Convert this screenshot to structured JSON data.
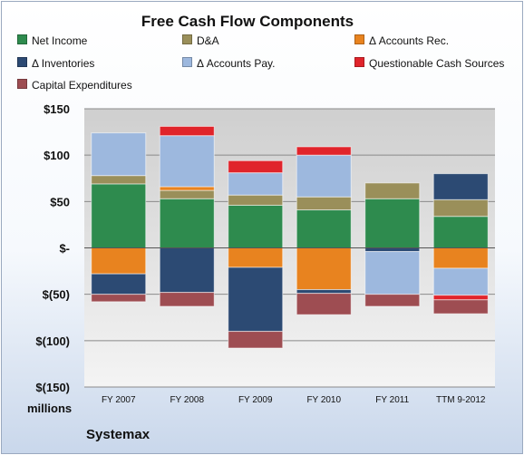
{
  "chart_data": {
    "type": "bar",
    "stacked": true,
    "title": "Free Cash Flow Components",
    "categories": [
      "FY 2007",
      "FY 2008",
      "FY 2009",
      "FY 2010",
      "FY 2011",
      "TTM 9-2012"
    ],
    "ylim": [
      -150,
      150
    ],
    "yticks": [
      150,
      100,
      50,
      0,
      -50,
      -100,
      -150
    ],
    "ytick_labels": [
      "$150",
      "$100",
      "$50",
      "$-",
      "$(50)",
      "$(100)",
      "$(150)"
    ],
    "ylabel": "millions",
    "grid": true,
    "legend_position": "top",
    "series": [
      {
        "name": "Net Income",
        "color": "#2e8b4e",
        "values": [
          69,
          53,
          46,
          41,
          53,
          34
        ]
      },
      {
        "name": "D&A",
        "color": "#9a8f5a",
        "values": [
          9,
          9,
          11,
          14,
          17,
          18
        ]
      },
      {
        "name": "Δ Accounts Rec.",
        "color": "#e8831f",
        "values": [
          -28,
          4,
          -21,
          -45,
          0,
          -22
        ]
      },
      {
        "name": "Δ Inventories",
        "color": "#2c4a73",
        "values": [
          -22,
          -48,
          -69,
          -4,
          -4,
          28
        ]
      },
      {
        "name": "Δ Accounts Pay.",
        "color": "#9db8de",
        "values": [
          46,
          55,
          24,
          45,
          -46,
          -29
        ]
      },
      {
        "name": "Questionable Cash Sources",
        "color": "#e0242b",
        "values": [
          0,
          10,
          13,
          9,
          0,
          -5
        ]
      },
      {
        "name": "Capital Expenditures",
        "color": "#9e4d52",
        "values": [
          -8,
          -15,
          -18,
          -23,
          -13,
          -15
        ]
      }
    ]
  },
  "footer": {
    "brand": "Systemax",
    "units": "millions"
  }
}
